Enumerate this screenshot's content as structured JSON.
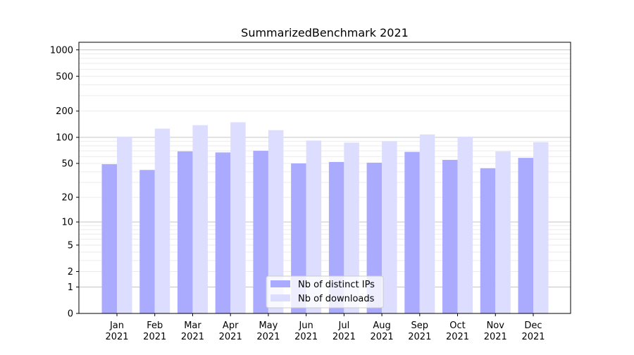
{
  "chart_data": {
    "type": "bar",
    "title": "SummarizedBenchmark 2021",
    "xlabel": "",
    "ylabel": "",
    "yscale": "log(1+y)",
    "ylim": [
      0,
      1220
    ],
    "yticks": [
      0,
      1,
      2,
      5,
      10,
      20,
      50,
      100,
      200,
      500,
      1000
    ],
    "grid": true,
    "legend_position": "bottom-center",
    "categories": [
      [
        "Jan",
        "2021"
      ],
      [
        "Feb",
        "2021"
      ],
      [
        "Mar",
        "2021"
      ],
      [
        "Apr",
        "2021"
      ],
      [
        "May",
        "2021"
      ],
      [
        "Jun",
        "2021"
      ],
      [
        "Jul",
        "2021"
      ],
      [
        "Aug",
        "2021"
      ],
      [
        "Sep",
        "2021"
      ],
      [
        "Oct",
        "2021"
      ],
      [
        "Nov",
        "2021"
      ],
      [
        "Dec",
        "2021"
      ]
    ],
    "series": [
      {
        "name": "Nb of distinct IPs",
        "color": "#aaaaff",
        "values": [
          49,
          42,
          69,
          67,
          70,
          50,
          52,
          51,
          68,
          55,
          44,
          58
        ]
      },
      {
        "name": "Nb of downloads",
        "color": "#ddddff",
        "values": [
          102,
          126,
          138,
          149,
          121,
          92,
          87,
          90,
          108,
          102,
          69,
          88
        ]
      }
    ]
  }
}
